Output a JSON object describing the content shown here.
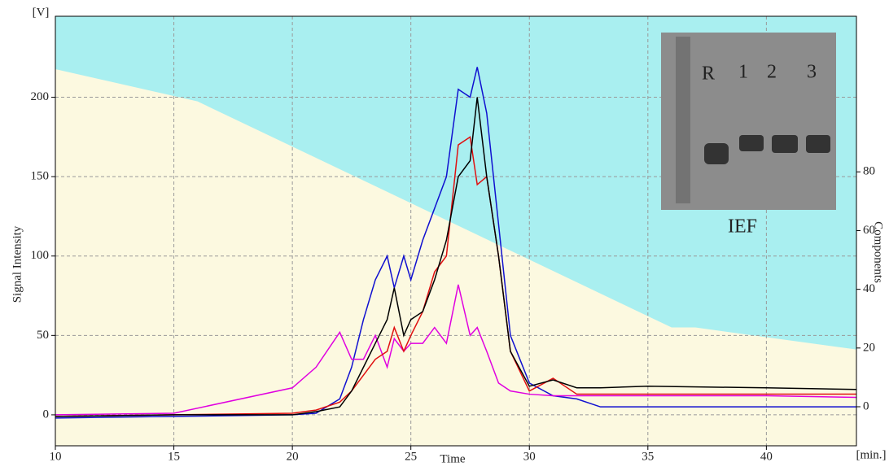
{
  "chart_data": {
    "type": "line",
    "y_label": "Signal Intensity",
    "y2_label": "Components",
    "x_label": "Time",
    "y_unit": "[V]",
    "x_unit": "[min.]",
    "xlim": [
      10,
      43.8
    ],
    "xticks": [
      10,
      15,
      20,
      25,
      30,
      35,
      40
    ],
    "ylim": [
      -19.5,
      251
    ],
    "yticks": [
      0,
      50,
      100,
      150,
      200
    ],
    "y2lim": [
      -13.3,
      133
    ],
    "y2ticks": [
      0,
      20,
      40,
      60,
      80
    ],
    "grid": true,
    "background_color": "#a9eff0",
    "gradient": {
      "axis": "y2",
      "color": "#fcf9e0",
      "x": [
        10,
        16,
        36,
        37,
        43.8
      ],
      "values": [
        115,
        104,
        27,
        27,
        19.5
      ]
    },
    "x": [
      10,
      15,
      20,
      21,
      22,
      22.5,
      23,
      23.5,
      24,
      24.3,
      24.7,
      25,
      25.5,
      26,
      26.5,
      27,
      27.5,
      27.8,
      28.2,
      28.7,
      29.2,
      30,
      31,
      32,
      33,
      35,
      40,
      43.8
    ],
    "series": [
      {
        "color": "#1010d0",
        "values": [
          -2,
          -1,
          0,
          1,
          10,
          30,
          60,
          85,
          100,
          80,
          100,
          85,
          110,
          130,
          150,
          205,
          200,
          219,
          190,
          120,
          50,
          20,
          12,
          10,
          5,
          5,
          5,
          5
        ]
      },
      {
        "color": "#e000e0",
        "values": [
          0,
          1,
          17,
          30,
          52,
          35,
          35,
          50,
          30,
          48,
          40,
          45,
          45,
          55,
          45,
          82,
          50,
          55,
          40,
          20,
          15,
          13,
          12,
          12,
          12,
          12,
          12,
          11
        ]
      },
      {
        "color": "#e01010",
        "values": [
          -1,
          0,
          1,
          3,
          8,
          15,
          25,
          35,
          40,
          55,
          40,
          50,
          65,
          90,
          100,
          170,
          175,
          145,
          150,
          100,
          40,
          15,
          23,
          13,
          13,
          13,
          13,
          13
        ]
      },
      {
        "color": "#000000",
        "values": [
          -1,
          0,
          0,
          2,
          5,
          15,
          30,
          45,
          60,
          80,
          50,
          60,
          65,
          85,
          110,
          150,
          160,
          200,
          150,
          100,
          40,
          18,
          22,
          17,
          17,
          18,
          17,
          16
        ]
      }
    ],
    "inset_labels": [
      "R",
      "1",
      "2",
      "3"
    ],
    "inset_caption": "IEF"
  }
}
